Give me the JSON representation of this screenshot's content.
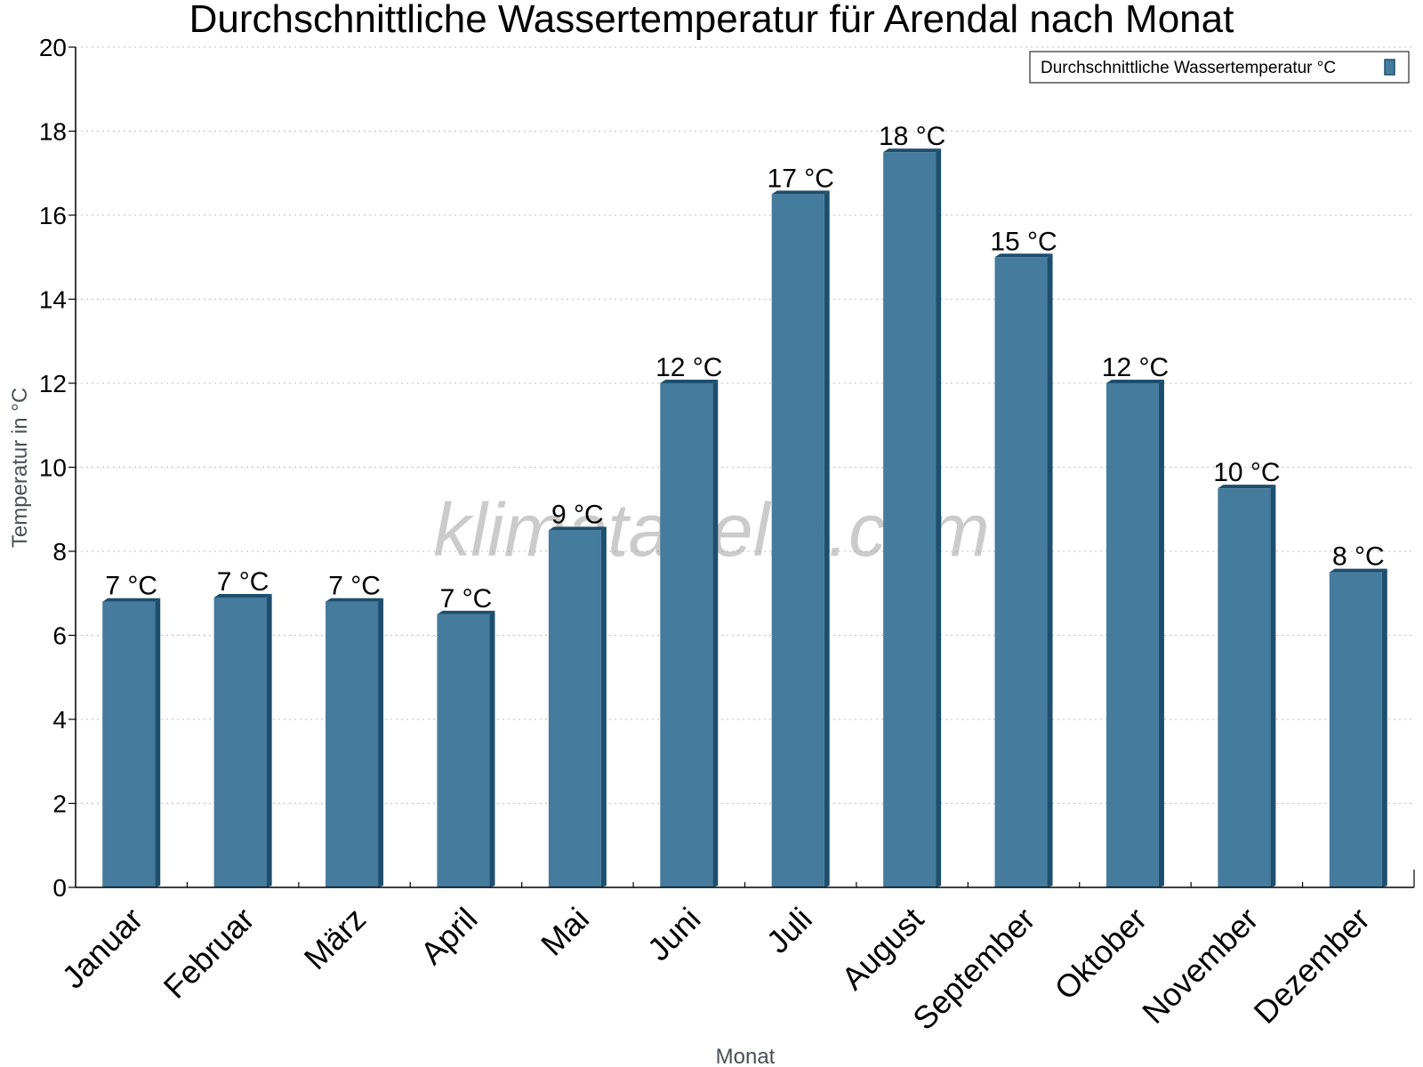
{
  "chart_data": {
    "type": "bar",
    "title": "Durchschnittliche Wassertemperatur für Arendal nach Monat",
    "xlabel": "Monat",
    "ylabel": "Temperatur in °C",
    "ylim": [
      0,
      20
    ],
    "yticks": [
      "0",
      "2",
      "4",
      "6",
      "8",
      "10",
      "12",
      "14",
      "16",
      "18",
      "20"
    ],
    "grid": "horizontal dotted",
    "legend_position": "top-right",
    "categories": [
      "Januar",
      "Februar",
      "März",
      "April",
      "Mai",
      "Juni",
      "Juli",
      "August",
      "September",
      "Oktober",
      "November",
      "Dezember"
    ],
    "series": [
      {
        "name": "Durchschnittliche Wassertemperatur °C",
        "color": "#457b9d",
        "edge_color": "#1d4e6e",
        "values": [
          6.8,
          6.9,
          6.8,
          6.5,
          8.5,
          12.0,
          16.5,
          17.5,
          15.0,
          12.0,
          9.5,
          7.5
        ],
        "data_labels": [
          "7 °C",
          "7 °C",
          "7 °C",
          "7 °C",
          "9 °C",
          "12 °C",
          "17 °C",
          "18 °C",
          "15 °C",
          "12 °C",
          "10 °C",
          "8 °C"
        ]
      }
    ],
    "watermark": "klimatabelle.com"
  }
}
